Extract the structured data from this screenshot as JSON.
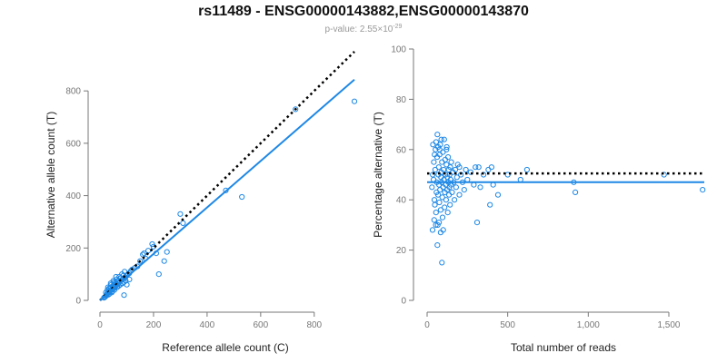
{
  "header": {
    "title": "rs11489 - ENSG00000143882,ENSG00000143870",
    "subtitle_prefix": "p-value: 2.55×10",
    "subtitle_exponent": "-29"
  },
  "colors": {
    "points": "#1e88e5",
    "fit": "#1e88e5",
    "reference": "#000000"
  },
  "chart_data": [
    {
      "type": "scatter",
      "xlabel": "Reference allele count (C)",
      "ylabel": "Alternative allele count (T)",
      "xlim": [
        0,
        950
      ],
      "ylim": [
        0,
        960
      ],
      "xticks": [
        0,
        200,
        400,
        600,
        800
      ],
      "xtick_labels": [
        "0",
        "200",
        "400",
        "600",
        "800"
      ],
      "yticks": [
        0,
        200,
        400,
        600,
        800
      ],
      "ytick_labels": [
        "0",
        "200",
        "400",
        "600",
        "800"
      ],
      "fit_line": {
        "x": [
          0,
          950
        ],
        "y": [
          0,
          843
        ]
      },
      "reference_line": {
        "x": [
          0,
          950
        ],
        "y": [
          0,
          950
        ]
      },
      "points": [
        [
          20,
          15
        ],
        [
          25,
          20
        ],
        [
          30,
          28
        ],
        [
          35,
          32
        ],
        [
          40,
          38
        ],
        [
          45,
          42
        ],
        [
          50,
          45
        ],
        [
          55,
          52
        ],
        [
          60,
          58
        ],
        [
          65,
          60
        ],
        [
          70,
          66
        ],
        [
          75,
          72
        ],
        [
          80,
          78
        ],
        [
          85,
          80
        ],
        [
          90,
          86
        ],
        [
          95,
          88
        ],
        [
          100,
          96
        ],
        [
          105,
          100
        ],
        [
          110,
          104
        ],
        [
          115,
          112
        ],
        [
          120,
          118
        ],
        [
          130,
          124
        ],
        [
          22,
          30
        ],
        [
          28,
          40
        ],
        [
          34,
          45
        ],
        [
          38,
          50
        ],
        [
          42,
          60
        ],
        [
          48,
          55
        ],
        [
          52,
          70
        ],
        [
          58,
          68
        ],
        [
          62,
          80
        ],
        [
          68,
          75
        ],
        [
          72,
          90
        ],
        [
          78,
          85
        ],
        [
          82,
          100
        ],
        [
          88,
          95
        ],
        [
          92,
          110
        ],
        [
          15,
          10
        ],
        [
          18,
          12
        ],
        [
          24,
          18
        ],
        [
          32,
          22
        ],
        [
          36,
          26
        ],
        [
          44,
          30
        ],
        [
          46,
          35
        ],
        [
          54,
          40
        ],
        [
          56,
          48
        ],
        [
          64,
          50
        ],
        [
          70,
          55
        ],
        [
          76,
          60
        ],
        [
          84,
          65
        ],
        [
          90,
          70
        ],
        [
          96,
          75
        ],
        [
          26,
          25
        ],
        [
          33,
          35
        ],
        [
          40,
          45
        ],
        [
          47,
          50
        ],
        [
          53,
          58
        ],
        [
          61,
          65
        ],
        [
          67,
          72
        ],
        [
          30,
          50
        ],
        [
          40,
          65
        ],
        [
          50,
          75
        ],
        [
          60,
          90
        ],
        [
          110,
          80
        ],
        [
          100,
          60
        ],
        [
          90,
          20
        ],
        [
          140,
          130
        ],
        [
          150,
          150
        ],
        [
          160,
          175
        ],
        [
          165,
          180
        ],
        [
          170,
          160
        ],
        [
          180,
          190
        ],
        [
          195,
          215
        ],
        [
          200,
          205
        ],
        [
          210,
          180
        ],
        [
          220,
          100
        ],
        [
          240,
          150
        ],
        [
          250,
          185
        ],
        [
          300,
          330
        ],
        [
          310,
          295
        ],
        [
          470,
          420
        ],
        [
          530,
          395
        ],
        [
          730,
          730
        ],
        [
          950,
          760
        ]
      ]
    },
    {
      "type": "scatter",
      "xlabel": "Total number of reads",
      "ylabel": "Percentage alternative (T)",
      "xlim": [
        0,
        1720
      ],
      "ylim": [
        0,
        100
      ],
      "xticks": [
        0,
        500,
        1000,
        1500
      ],
      "xtick_labels": [
        "0",
        "500",
        "1,000",
        "1,500"
      ],
      "yticks": [
        0,
        20,
        40,
        60,
        80,
        100
      ],
      "ytick_labels": [
        "0",
        "20",
        "40",
        "60",
        "80",
        "100"
      ],
      "fit_line": {
        "x": [
          0,
          1720
        ],
        "y": [
          47,
          47
        ]
      },
      "reference_line": {
        "x": [
          0,
          1720
        ],
        "y": [
          50.5,
          50.5
        ]
      },
      "points": [
        [
          30,
          45
        ],
        [
          35,
          50
        ],
        [
          40,
          48
        ],
        [
          42,
          55
        ],
        [
          45,
          40
        ],
        [
          48,
          38
        ],
        [
          50,
          52
        ],
        [
          52,
          60
        ],
        [
          55,
          35
        ],
        [
          58,
          43
        ],
        [
          60,
          47
        ],
        [
          62,
          57
        ],
        [
          64,
          66
        ],
        [
          66,
          30
        ],
        [
          68,
          42
        ],
        [
          70,
          50
        ],
        [
          72,
          53
        ],
        [
          74,
          46
        ],
        [
          76,
          39
        ],
        [
          78,
          58
        ],
        [
          80,
          44
        ],
        [
          82,
          62
        ],
        [
          84,
          36
        ],
        [
          86,
          49
        ],
        [
          88,
          51
        ],
        [
          90,
          47
        ],
        [
          92,
          55
        ],
        [
          94,
          41
        ],
        [
          96,
          33
        ],
        [
          98,
          59
        ],
        [
          100,
          45
        ],
        [
          102,
          52
        ],
        [
          104,
          48
        ],
        [
          106,
          64
        ],
        [
          108,
          37
        ],
        [
          110,
          43
        ],
        [
          112,
          56
        ],
        [
          114,
          50
        ],
        [
          116,
          46
        ],
        [
          118,
          40
        ],
        [
          120,
          54
        ],
        [
          122,
          61
        ],
        [
          124,
          44
        ],
        [
          126,
          49
        ],
        [
          128,
          35
        ],
        [
          130,
          57
        ],
        [
          132,
          47
        ],
        [
          134,
          52
        ],
        [
          136,
          42
        ],
        [
          138,
          45
        ],
        [
          140,
          50
        ],
        [
          142,
          38
        ],
        [
          144,
          53
        ],
        [
          146,
          48
        ],
        [
          148,
          46
        ],
        [
          150,
          55
        ],
        [
          155,
          43
        ],
        [
          160,
          51
        ],
        [
          165,
          47
        ],
        [
          170,
          40
        ],
        [
          175,
          52
        ],
        [
          180,
          45
        ],
        [
          185,
          49
        ],
        [
          190,
          54
        ],
        [
          200,
          42
        ],
        [
          210,
          50
        ],
        [
          220,
          47
        ],
        [
          230,
          44
        ],
        [
          240,
          52
        ],
        [
          250,
          48
        ],
        [
          270,
          51
        ],
        [
          290,
          46
        ],
        [
          34,
          28
        ],
        [
          44,
          32
        ],
        [
          54,
          30
        ],
        [
          64,
          22
        ],
        [
          74,
          31
        ],
        [
          84,
          27
        ],
        [
          92,
          15
        ],
        [
          100,
          28
        ],
        [
          36,
          62
        ],
        [
          46,
          58
        ],
        [
          56,
          63
        ],
        [
          68,
          61
        ],
        [
          78,
          60
        ],
        [
          88,
          64
        ],
        [
          120,
          60
        ],
        [
          200,
          53
        ],
        [
          300,
          53
        ],
        [
          310,
          31
        ],
        [
          320,
          53
        ],
        [
          330,
          45
        ],
        [
          350,
          50
        ],
        [
          380,
          52
        ],
        [
          390,
          38
        ],
        [
          400,
          53
        ],
        [
          410,
          46
        ],
        [
          440,
          42
        ],
        [
          500,
          50
        ],
        [
          580,
          48
        ],
        [
          620,
          52
        ],
        [
          910,
          47
        ],
        [
          920,
          43
        ],
        [
          1470,
          50
        ],
        [
          1710,
          44
        ]
      ]
    }
  ]
}
